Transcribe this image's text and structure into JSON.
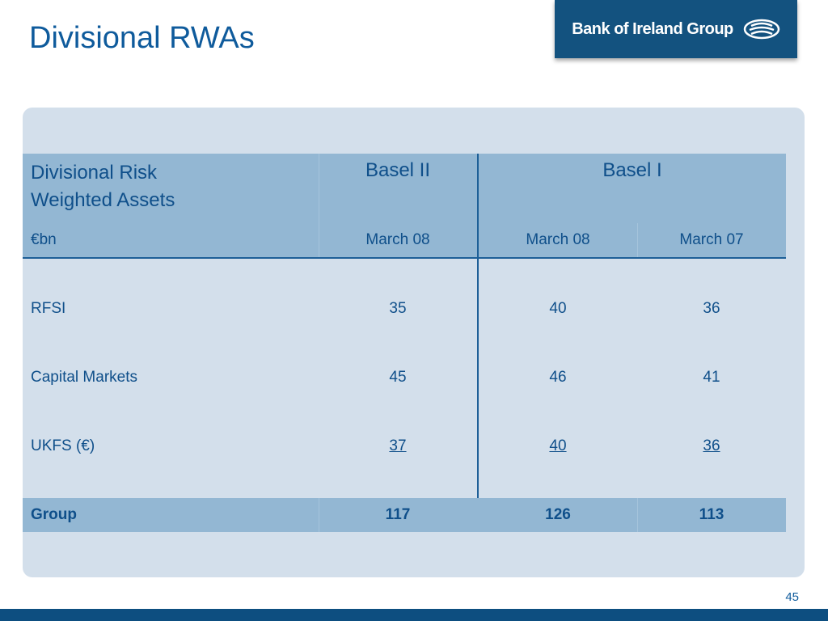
{
  "slide": {
    "title": "Divisional RWAs",
    "page_number": "45"
  },
  "logo": {
    "text": "Bank of Ireland Group",
    "icon": "bank-of-ireland-emblem-icon"
  },
  "table": {
    "header": {
      "row_label_line1": "Divisional Risk",
      "row_label_line2": "Weighted Assets",
      "group_basel2": "Basel II",
      "group_basel1": "Basel I",
      "unit": "€bn",
      "columns": [
        "March 08",
        "March 08",
        "March 07"
      ]
    },
    "rows": [
      {
        "label": "RFSI",
        "values": [
          "35",
          "40",
          "36"
        ]
      },
      {
        "label": "Capital Markets",
        "values": [
          "45",
          "46",
          "41"
        ]
      },
      {
        "label": "UKFS (€)",
        "values": [
          "37",
          "40",
          "36"
        ]
      }
    ],
    "total": {
      "label": "Group",
      "values": [
        "117",
        "126",
        "113"
      ]
    }
  },
  "colors": {
    "accent": "#0f5b9c",
    "header_fill": "#93b7d3",
    "panel_fill": "#d3dfeb",
    "footer_bar": "#0d4e80"
  }
}
